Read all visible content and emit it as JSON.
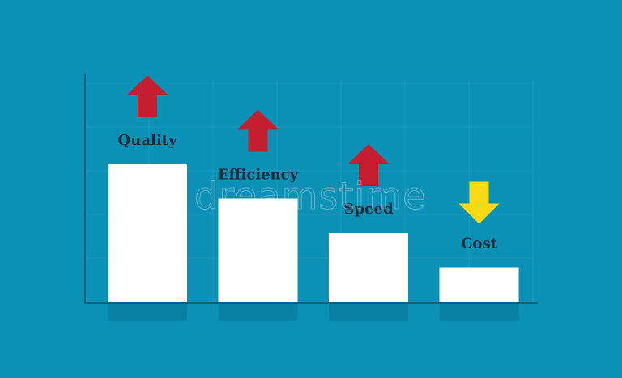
{
  "chart_data": {
    "type": "bar",
    "categories": [
      "Quality",
      "Efficiency",
      "Speed",
      "Cost"
    ],
    "values": [
      4,
      3,
      2,
      1
    ],
    "trend": [
      "up",
      "up",
      "up",
      "down"
    ],
    "title": "",
    "xlabel": "",
    "ylabel": "",
    "ylim": [
      0,
      5
    ],
    "grid": true,
    "colors": {
      "background": "#0b90b6",
      "bar": "#ffffff",
      "up_arrow": "#c41e2f",
      "down_arrow": "#f7d914",
      "label": "#0e2a3b",
      "axis": "#0a5f7e",
      "grid": "#1c9cc0"
    }
  },
  "watermark": "dreamstime"
}
